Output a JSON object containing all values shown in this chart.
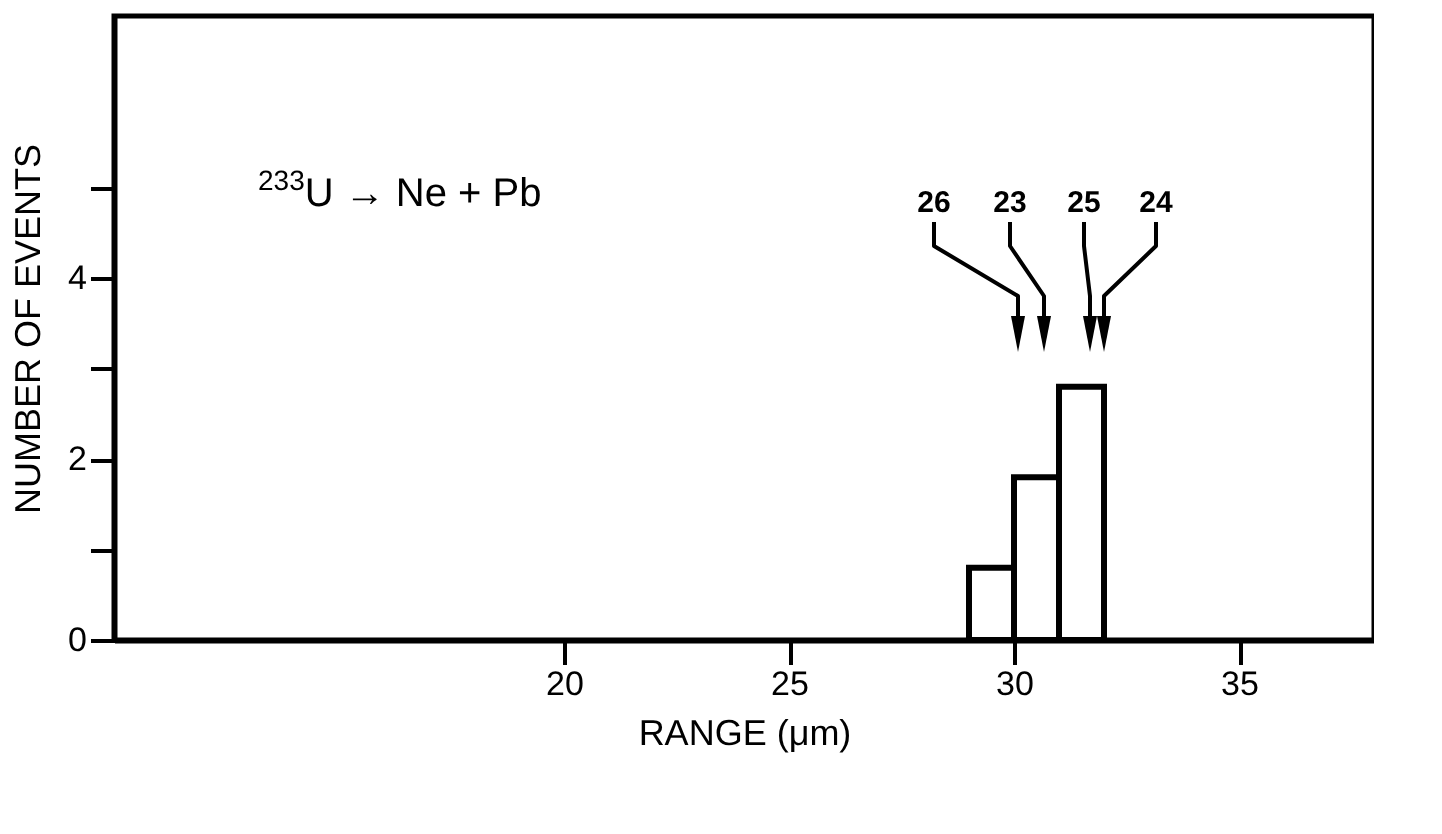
{
  "chart_data": {
    "type": "histogram",
    "xlabel": "RANGE (μm)",
    "ylabel": "NUMBER OF EVENTS",
    "bins": [
      29,
      30,
      31,
      32
    ],
    "values": [
      0.8,
      1.8,
      2.8
    ],
    "color": "#000000",
    "xlim": [
      10,
      38
    ],
    "xticks": [
      20,
      25,
      30,
      35
    ],
    "ylim": [
      0,
      6.9
    ],
    "yticks": [
      0,
      {
        "value": 1,
        "label": null
      },
      2,
      {
        "value": 3,
        "label": null
      },
      4,
      {
        "value": 5,
        "label": null
      }
    ],
    "grid": false,
    "annotations": [
      "$^{233}$U → Ne + Pb",
      "26",
      "23",
      "25",
      "24"
    ]
  }
}
